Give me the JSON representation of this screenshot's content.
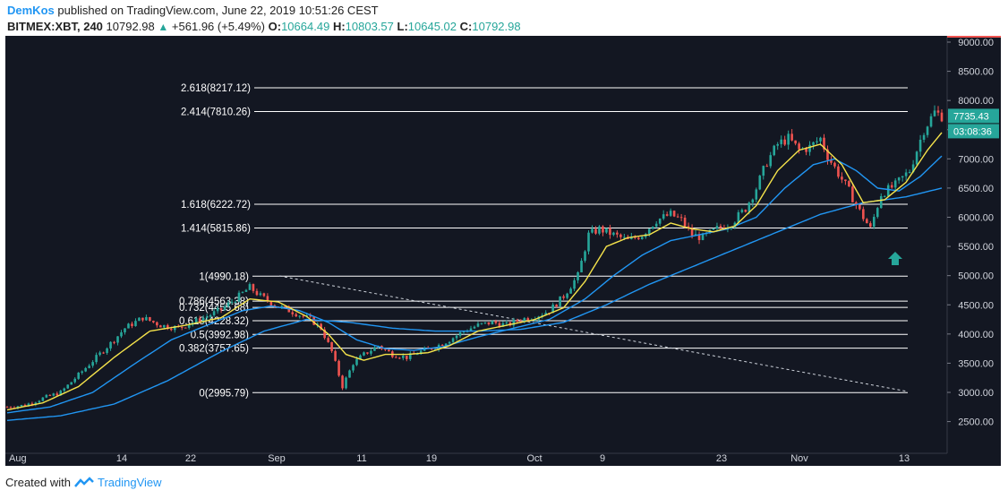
{
  "header": {
    "author": "DemKos",
    "published": "published on TradingView.com, June 22, 2019 10:51:26 CEST",
    "symbol": "BITMEX:XBT, 240",
    "last": "10792.98",
    "change": "+561.96 (+5.49%)",
    "o_label": "O:",
    "o": "10664.49",
    "h_label": "H:",
    "h": "10803.57",
    "l_label": "L:",
    "l": "10645.02",
    "c_label": "C:",
    "c": "10792.98"
  },
  "footer": {
    "created": "Created with",
    "brand": "TradingView"
  },
  "colors": {
    "background": "#131722",
    "candle_up": "#26a69a",
    "candle_down": "#ef5350",
    "ma_fast": "#f5e34b",
    "ma_slow": "#2196f3",
    "fib_line": "#ffffff",
    "price_tag": "#26a69a"
  },
  "chart_data": {
    "type": "candlestick",
    "ylim": [
      2300,
      9100
    ],
    "y_ticks": [
      "9000.00",
      "8500.00",
      "8000.00",
      "7500.00",
      "7000.00",
      "6500.00",
      "6000.00",
      "5500.00",
      "5000.00",
      "4500.00",
      "4000.00",
      "3500.00",
      "3000.00",
      "2500.00"
    ],
    "x_ticks": [
      "Aug",
      "14",
      "22",
      "Sep",
      "11",
      "19",
      "Oct",
      "9",
      "23",
      "Nov",
      "13"
    ],
    "price_tag": "7735.43",
    "time_tag": "03:08:36",
    "last_price": 7735.43,
    "fib_levels": [
      {
        "label": "2.618(8217.12)",
        "value": 8217.12
      },
      {
        "label": "2.414(7810.26)",
        "value": 7810.26
      },
      {
        "label": "1.618(6222.72)",
        "value": 6222.72
      },
      {
        "label": "1.414(5815.86)",
        "value": 5815.86
      },
      {
        "label": "1(4990.18)",
        "value": 4990.18
      },
      {
        "label": "0.786(4563.38)",
        "value": 4563.38
      },
      {
        "label": "0.732(4455.68)",
        "value": 4455.68
      },
      {
        "label": "0.618(4228.32)",
        "value": 4228.32
      },
      {
        "label": "0.5(3992.98)",
        "value": 3992.98
      },
      {
        "label": "0.382(3757.65)",
        "value": 3757.65
      },
      {
        "label": "0(2995.79)",
        "value": 2995.79
      }
    ],
    "close_path": [
      [
        0,
        2750
      ],
      [
        5,
        2780
      ],
      [
        10,
        2900
      ],
      [
        15,
        3000
      ],
      [
        20,
        3300
      ],
      [
        25,
        3600
      ],
      [
        30,
        3900
      ],
      [
        33,
        4100
      ],
      [
        38,
        4280
      ],
      [
        43,
        4150
      ],
      [
        48,
        4100
      ],
      [
        52,
        4200
      ],
      [
        56,
        4300
      ],
      [
        60,
        4420
      ],
      [
        65,
        4650
      ],
      [
        68,
        4800
      ],
      [
        71,
        4650
      ],
      [
        75,
        4500
      ],
      [
        80,
        4380
      ],
      [
        85,
        4250
      ],
      [
        88,
        4100
      ],
      [
        91,
        3700
      ],
      [
        94,
        3100
      ],
      [
        97,
        3500
      ],
      [
        100,
        3650
      ],
      [
        104,
        3800
      ],
      [
        108,
        3650
      ],
      [
        112,
        3600
      ],
      [
        116,
        3700
      ],
      [
        120,
        3780
      ],
      [
        124,
        3900
      ],
      [
        128,
        4050
      ],
      [
        132,
        4150
      ],
      [
        136,
        4200
      ],
      [
        140,
        4150
      ],
      [
        144,
        4250
      ],
      [
        148,
        4300
      ],
      [
        152,
        4400
      ],
      [
        156,
        4650
      ],
      [
        160,
        5000
      ],
      [
        163,
        5700
      ],
      [
        166,
        5800
      ],
      [
        170,
        5700
      ],
      [
        174,
        5600
      ],
      [
        178,
        5700
      ],
      [
        182,
        5950
      ],
      [
        186,
        6050
      ],
      [
        189,
        5950
      ],
      [
        192,
        5700
      ],
      [
        195,
        5650
      ],
      [
        199,
        5800
      ],
      [
        203,
        5900
      ],
      [
        207,
        6150
      ],
      [
        210,
        6500
      ],
      [
        213,
        6950
      ],
      [
        216,
        7250
      ],
      [
        219,
        7350
      ],
      [
        222,
        7150
      ],
      [
        225,
        7200
      ],
      [
        228,
        7350
      ],
      [
        230,
        7050
      ],
      [
        233,
        6750
      ],
      [
        236,
        6450
      ],
      [
        239,
        6100
      ],
      [
        242,
        5800
      ],
      [
        245,
        6400
      ],
      [
        249,
        6550
      ],
      [
        253,
        6800
      ],
      [
        257,
        7500
      ],
      [
        260,
        7800
      ],
      [
        262,
        7735
      ]
    ],
    "ma_fast": [
      [
        0,
        2700
      ],
      [
        10,
        2820
      ],
      [
        20,
        3100
      ],
      [
        30,
        3600
      ],
      [
        40,
        4050
      ],
      [
        50,
        4150
      ],
      [
        60,
        4280
      ],
      [
        68,
        4600
      ],
      [
        76,
        4550
      ],
      [
        84,
        4300
      ],
      [
        90,
        4000
      ],
      [
        95,
        3650
      ],
      [
        100,
        3550
      ],
      [
        106,
        3650
      ],
      [
        112,
        3650
      ],
      [
        118,
        3680
      ],
      [
        124,
        3800
      ],
      [
        132,
        4050
      ],
      [
        140,
        4150
      ],
      [
        148,
        4250
      ],
      [
        156,
        4450
      ],
      [
        162,
        4900
      ],
      [
        168,
        5500
      ],
      [
        174,
        5650
      ],
      [
        180,
        5700
      ],
      [
        186,
        5900
      ],
      [
        192,
        5800
      ],
      [
        198,
        5750
      ],
      [
        204,
        5850
      ],
      [
        210,
        6200
      ],
      [
        216,
        6800
      ],
      [
        222,
        7150
      ],
      [
        228,
        7250
      ],
      [
        234,
        6900
      ],
      [
        240,
        6250
      ],
      [
        246,
        6300
      ],
      [
        252,
        6600
      ],
      [
        258,
        7150
      ],
      [
        262,
        7450
      ]
    ],
    "ma_mid": [
      [
        0,
        2650
      ],
      [
        12,
        2750
      ],
      [
        24,
        3000
      ],
      [
        36,
        3500
      ],
      [
        46,
        3900
      ],
      [
        56,
        4150
      ],
      [
        66,
        4400
      ],
      [
        74,
        4480
      ],
      [
        82,
        4400
      ],
      [
        90,
        4200
      ],
      [
        98,
        3900
      ],
      [
        106,
        3750
      ],
      [
        114,
        3720
      ],
      [
        122,
        3780
      ],
      [
        132,
        3950
      ],
      [
        142,
        4100
      ],
      [
        152,
        4250
      ],
      [
        162,
        4600
      ],
      [
        170,
        5000
      ],
      [
        178,
        5350
      ],
      [
        186,
        5600
      ],
      [
        194,
        5700
      ],
      [
        202,
        5800
      ],
      [
        210,
        6000
      ],
      [
        218,
        6500
      ],
      [
        226,
        6900
      ],
      [
        232,
        7000
      ],
      [
        238,
        6800
      ],
      [
        244,
        6500
      ],
      [
        250,
        6450
      ],
      [
        256,
        6700
      ],
      [
        262,
        7050
      ]
    ],
    "ma_slow": [
      [
        0,
        2520
      ],
      [
        15,
        2600
      ],
      [
        30,
        2800
      ],
      [
        45,
        3200
      ],
      [
        60,
        3700
      ],
      [
        72,
        4050
      ],
      [
        84,
        4250
      ],
      [
        96,
        4200
      ],
      [
        108,
        4100
      ],
      [
        120,
        4050
      ],
      [
        132,
        4050
      ],
      [
        144,
        4080
      ],
      [
        156,
        4200
      ],
      [
        168,
        4500
      ],
      [
        180,
        4850
      ],
      [
        192,
        5150
      ],
      [
        204,
        5450
      ],
      [
        216,
        5750
      ],
      [
        228,
        6050
      ],
      [
        240,
        6250
      ],
      [
        252,
        6350
      ],
      [
        262,
        6500
      ]
    ]
  }
}
